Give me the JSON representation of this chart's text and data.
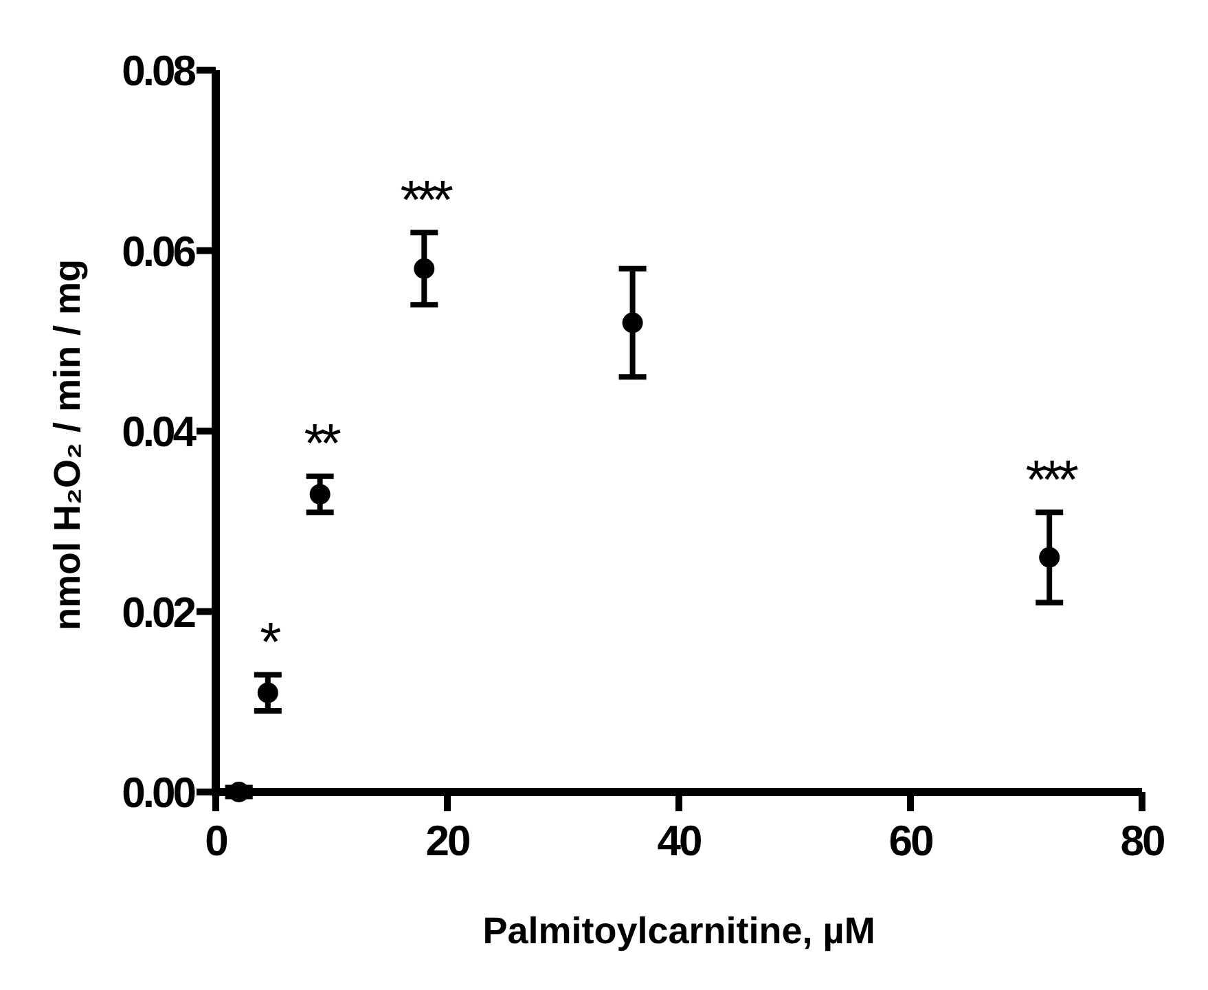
{
  "chart_data": {
    "type": "scatter",
    "xlabel": "Palmitoylcarnitine, µM",
    "ylabel": "nmol H₂O₂ / min / mg",
    "x": [
      2,
      4.5,
      9,
      18,
      36,
      72
    ],
    "values": [
      0.0,
      0.011,
      0.033,
      0.058,
      0.052,
      0.026
    ],
    "errors": [
      0.0005,
      0.002,
      0.002,
      0.004,
      0.006,
      0.005
    ],
    "color": "#000000",
    "marker": "circle",
    "xlim": [
      0,
      80
    ],
    "xticks": [
      0,
      20,
      40,
      60,
      80
    ],
    "ylim": [
      0,
      0.08
    ],
    "yticks": [
      {
        "value": 0,
        "label": "0.00"
      },
      {
        "value": 0.02,
        "label": "0.02"
      },
      {
        "value": 0.04,
        "label": "0.04"
      },
      {
        "value": 0.06,
        "label": "0.06"
      },
      {
        "value": 0.08,
        "label": "0.08"
      }
    ],
    "annotations": [
      {
        "text": "*",
        "x": 4.5,
        "y": 0.011
      },
      {
        "text": "**",
        "x": 9,
        "y": 0.033
      },
      {
        "text": "***",
        "x": 18,
        "y": 0.058
      },
      {
        "text": "***",
        "x": 72,
        "y": 0.026
      }
    ]
  }
}
